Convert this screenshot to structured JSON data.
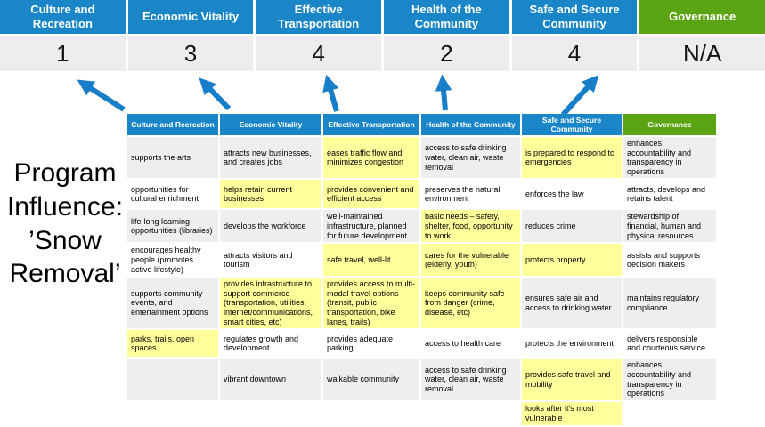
{
  "colors": {
    "blue": "#1a86c8",
    "green": "#5ba414",
    "arrow": "#197ec9",
    "score_bg": "#ededed",
    "row_gray": "#eeeeee",
    "highlight": "#ffff9c"
  },
  "program": {
    "label": "Program Influence:\n’Snow Removal’"
  },
  "scoreboard": {
    "columns": [
      {
        "label": "Culture and Recreation",
        "score": "1",
        "style": "blue"
      },
      {
        "label": "Economic Vitality",
        "score": "3",
        "style": "blue"
      },
      {
        "label": "Effective Transportation",
        "score": "4",
        "style": "blue"
      },
      {
        "label": "Health of the Community",
        "score": "2",
        "style": "blue"
      },
      {
        "label": "Safe and Secure Community",
        "score": "4",
        "style": "blue"
      },
      {
        "label": "Governance",
        "score": "N/A",
        "style": "green"
      }
    ]
  },
  "matrix": {
    "headers": [
      "Culture and Recreation",
      "Economic Vitality",
      "Effective Transportation",
      "Health of the Community",
      "Safe and Secure Community",
      "Governance"
    ],
    "rows": [
      [
        {
          "t": "supports the arts",
          "h": false
        },
        {
          "t": "attracts new businesses, and creates jobs",
          "h": false
        },
        {
          "t": "eases traffic flow and minimizes congestion",
          "h": true
        },
        {
          "t": "access to safe drinking water, clean air, waste removal",
          "h": false
        },
        {
          "t": "is prepared to respond to emergencies",
          "h": true
        },
        {
          "t": "enhances accountability and transparency in operations",
          "h": false
        }
      ],
      [
        {
          "t": "opportunities for cultural enrichment",
          "h": false
        },
        {
          "t": "helps retain current businesses",
          "h": true
        },
        {
          "t": "provides convenient and efficient access",
          "h": true
        },
        {
          "t": "preserves the natural environment",
          "h": false
        },
        {
          "t": "enforces the law",
          "h": false
        },
        {
          "t": "attracts, develops and retains talent",
          "h": false
        }
      ],
      [
        {
          "t": "life-long learning opportunities (libraries)",
          "h": false
        },
        {
          "t": "develops the workforce",
          "h": false
        },
        {
          "t": "well-maintained infrastructure, planned for future development",
          "h": false
        },
        {
          "t": "basic needs – safety, shelter, food, opportunity to work",
          "h": true
        },
        {
          "t": "reduces crime",
          "h": false
        },
        {
          "t": "stewardship of financial, human and physical resources",
          "h": false
        }
      ],
      [
        {
          "t": "encourages healthy people (promotes active lifestyle)",
          "h": false
        },
        {
          "t": "attracts visitors and tourism",
          "h": false
        },
        {
          "t": "safe travel, well-lit",
          "h": true
        },
        {
          "t": "cares for the vulnerable (elderly, youth)",
          "h": true
        },
        {
          "t": "protects property",
          "h": true
        },
        {
          "t": "assists and supports decision makers",
          "h": false
        }
      ],
      [
        {
          "t": "supports community events, and entertainment options",
          "h": false
        },
        {
          "t": "provides infrastructure to support commerce (transportation, utilities, internet/communications, smart cities, etc)",
          "h": true
        },
        {
          "t": "provides access to multi-modal travel options (transit, public transportation, bike lanes, trails)",
          "h": true
        },
        {
          "t": "keeps community safe from danger (crime, disease, etc)",
          "h": true
        },
        {
          "t": "ensures safe air and access to drinking water",
          "h": false
        },
        {
          "t": "maintains regulatory compliance",
          "h": false
        }
      ],
      [
        {
          "t": "parks, trails, open spaces",
          "h": true
        },
        {
          "t": "regulates growth and development",
          "h": false
        },
        {
          "t": "provides adequate parking",
          "h": false
        },
        {
          "t": "access to health care",
          "h": false
        },
        {
          "t": "protects the environment",
          "h": false
        },
        {
          "t": "delivers responsible and courteous service",
          "h": false
        }
      ],
      [
        {
          "t": "",
          "h": false
        },
        {
          "t": "vibrant downtown",
          "h": false
        },
        {
          "t": "walkable community",
          "h": false
        },
        {
          "t": "access to safe drinking water, clean air, waste removal",
          "h": false
        },
        {
          "t": "provides safe travel and mobility",
          "h": true
        },
        {
          "t": "enhances accountability and transparency in operations",
          "h": false
        }
      ],
      [
        {
          "t": "",
          "h": false
        },
        {
          "t": "",
          "h": false
        },
        {
          "t": "",
          "h": false
        },
        {
          "t": "",
          "h": false
        },
        {
          "t": "looks after it's most vulnerable",
          "h": true
        },
        {
          "t": "",
          "h": false
        }
      ]
    ]
  }
}
